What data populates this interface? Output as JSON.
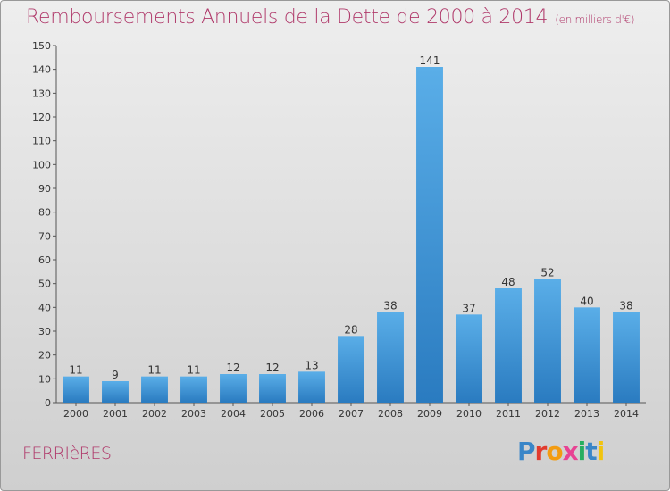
{
  "header": {
    "title": "Remboursements Annuels de la Dette de 2000 à 2014",
    "unit": "(en milliers d'€)"
  },
  "footer": {
    "commune": "FERRIèRES",
    "logo": "Proxiti"
  },
  "colors": {
    "title": "#b03a6b",
    "bar_top": "#5aaee8",
    "bar_bottom": "#2a7bc0",
    "logo_letters": [
      "#3a86c8",
      "#e23b2e",
      "#f39c12",
      "#e84393",
      "#27ae60",
      "#3a86c8",
      "#f1c40f"
    ]
  },
  "chart_data": {
    "type": "bar",
    "title": "Remboursements Annuels de la Dette de 2000 à 2014",
    "subtitle": "(en milliers d'€)",
    "xlabel": "",
    "ylabel": "",
    "categories": [
      "2000",
      "2001",
      "2002",
      "2003",
      "2004",
      "2005",
      "2006",
      "2007",
      "2008",
      "2009",
      "2010",
      "2011",
      "2012",
      "2013",
      "2014"
    ],
    "values": [
      11,
      9,
      11,
      11,
      12,
      12,
      13,
      28,
      38,
      141,
      37,
      48,
      52,
      40,
      38
    ],
    "ylim": [
      0,
      150
    ],
    "yticks": [
      0,
      10,
      20,
      30,
      40,
      50,
      60,
      70,
      80,
      90,
      100,
      110,
      120,
      130,
      140,
      150
    ],
    "grid": false,
    "data_labels": true
  }
}
